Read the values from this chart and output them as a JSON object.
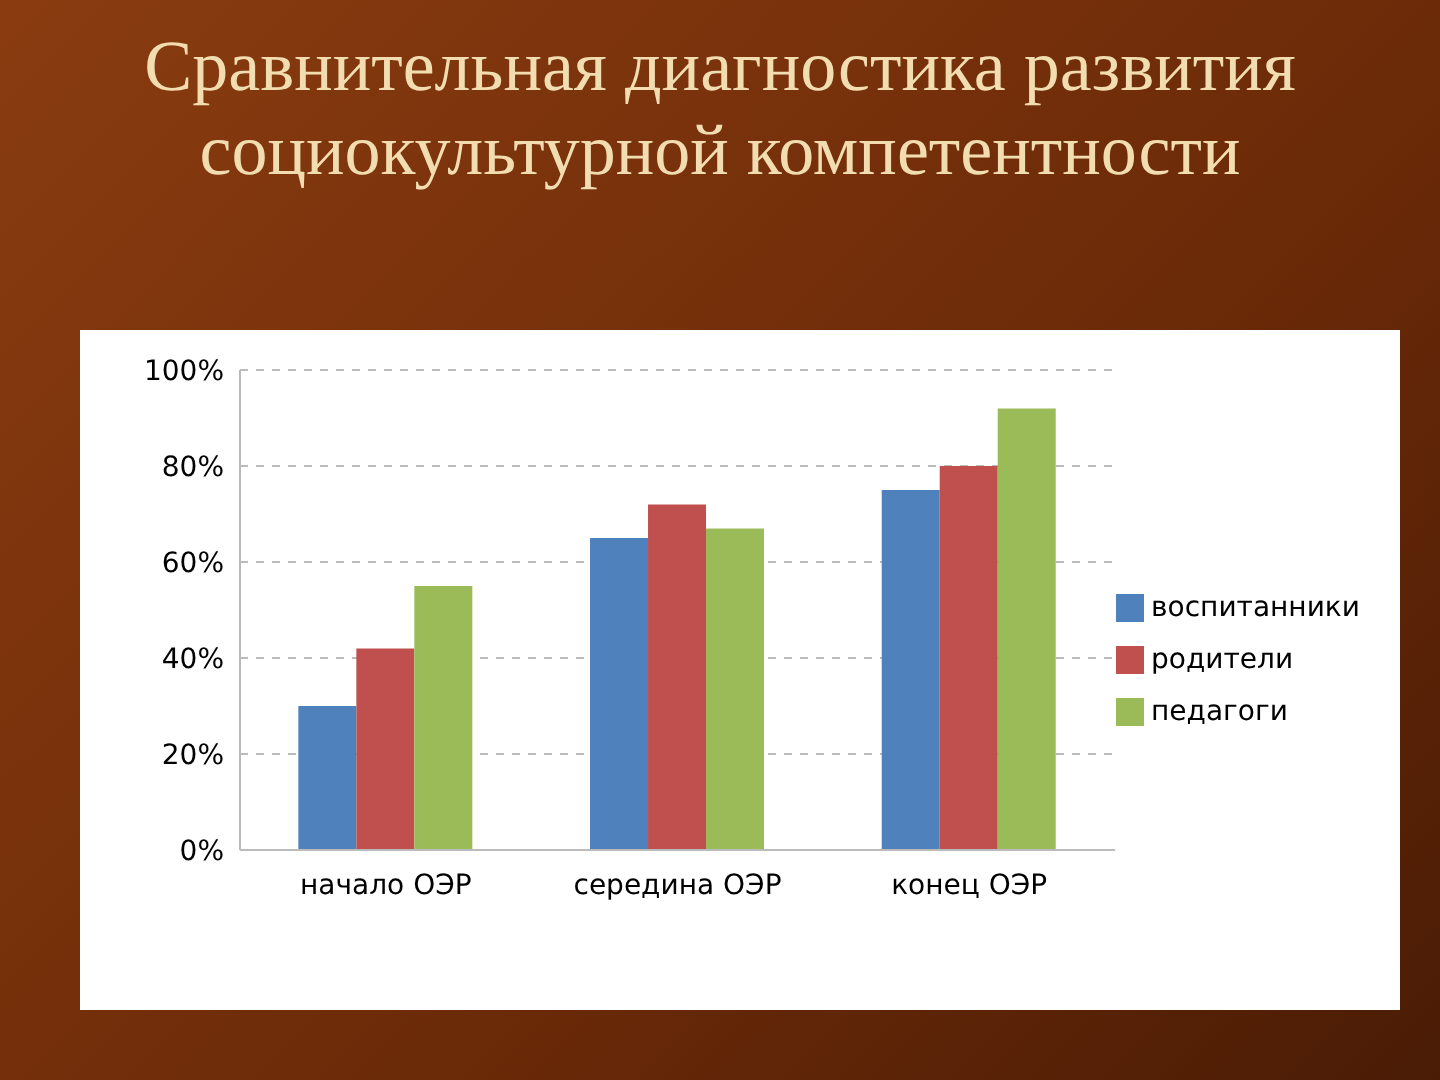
{
  "chart_data": {
    "type": "bar",
    "title": "Сравнительная диагностика развития социокультурной компетентности",
    "categories": [
      "начало ОЭР",
      "середина ОЭР",
      "конец ОЭР"
    ],
    "series": [
      {
        "name": "воспитанники",
        "color": "#4f81bd",
        "values": [
          30,
          65,
          75
        ]
      },
      {
        "name": "родители",
        "color": "#c0504d",
        "values": [
          42,
          72,
          80
        ]
      },
      {
        "name": "педагоги",
        "color": "#9bbb59",
        "values": [
          55,
          67,
          92
        ]
      }
    ],
    "ylim": [
      0,
      100
    ],
    "yticks": [
      {
        "value": 0,
        "label": "0%"
      },
      {
        "value": 20,
        "label": "20%"
      },
      {
        "value": 40,
        "label": "40%"
      },
      {
        "value": 60,
        "label": "60%"
      },
      {
        "value": 80,
        "label": "80%"
      },
      {
        "value": 100,
        "label": "100%"
      }
    ],
    "grid": "y",
    "legend": "right"
  }
}
